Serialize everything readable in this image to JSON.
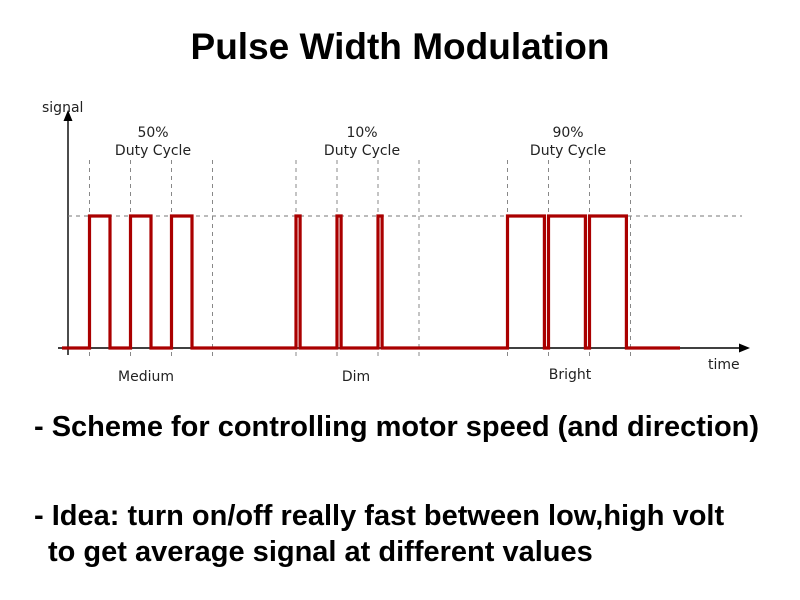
{
  "slide": {
    "title": "Pulse Width Modulation",
    "bullets": [
      "- Scheme for controlling motor speed (and direction)",
      "- Idea: turn on/off really fast between low,high volt",
      "to get average signal at different values"
    ]
  },
  "diagram": {
    "y_axis_label": "signal",
    "x_axis_label": "time",
    "signal_color": "#aa0000",
    "groups": [
      {
        "percent": "50%",
        "caption": "Duty Cycle",
        "brightness": "Medium",
        "duty": 0.5
      },
      {
        "percent": "10%",
        "caption": "Duty Cycle",
        "brightness": "Dim",
        "duty": 0.1
      },
      {
        "percent": "90%",
        "caption": "Duty Cycle",
        "brightness": "Bright",
        "duty": 0.9
      }
    ]
  }
}
